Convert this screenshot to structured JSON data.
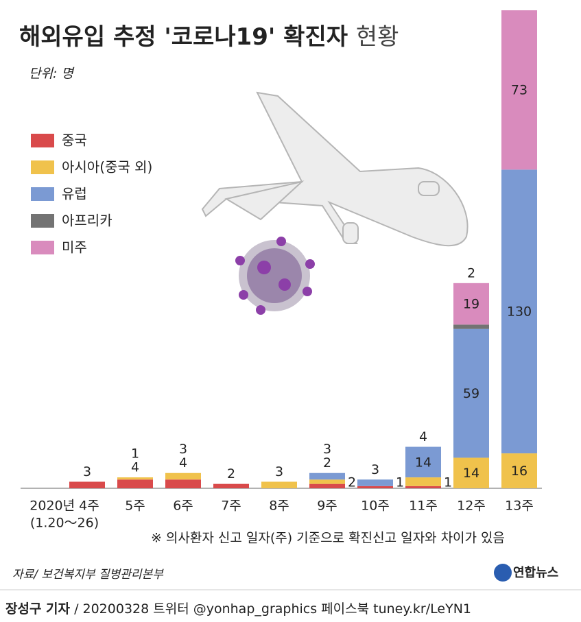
{
  "chart_data": {
    "type": "stacked-bar",
    "title": "해외유입 추정 '코로나19' 확진자",
    "title_suffix": "현황",
    "unit": "단위: 명",
    "categories": [
      "2020년 4주",
      "5주",
      "6주",
      "7주",
      "8주",
      "9주",
      "10주",
      "11주",
      "12주",
      "13주"
    ],
    "first_category_note": "(1.20～26)",
    "series": [
      {
        "name": "중국",
        "color": "#d94a4b",
        "values": [
          3,
          4,
          4,
          2,
          null,
          2,
          1,
          1,
          null,
          null
        ]
      },
      {
        "name": "아시아(중국 외)",
        "color": "#f0c24c",
        "values": [
          null,
          1,
          3,
          null,
          3,
          2,
          null,
          4,
          14,
          16
        ]
      },
      {
        "name": "유럽",
        "color": "#7b9ad3",
        "values": [
          null,
          null,
          null,
          null,
          null,
          3,
          3,
          14,
          59,
          130
        ]
      },
      {
        "name": "아프리카",
        "color": "#737373",
        "values": [
          null,
          null,
          null,
          null,
          null,
          null,
          null,
          null,
          2,
          null
        ]
      },
      {
        "name": "미주",
        "color": "#d98bbd",
        "values": [
          null,
          null,
          null,
          null,
          null,
          null,
          null,
          null,
          19,
          73
        ]
      }
    ],
    "note": "※ 의사환자 신고 일자(주) 기준으로 확진신고 일자와 차이가 있음",
    "source": "자료/ 보건복지부 질병관리본부",
    "logo": "연합뉴스",
    "footer": {
      "reporter": "장성구 기자",
      "info": "/ 20200328  트위터 @yonhap_graphics  페이스북 tuney.kr/LeYN1"
    }
  }
}
